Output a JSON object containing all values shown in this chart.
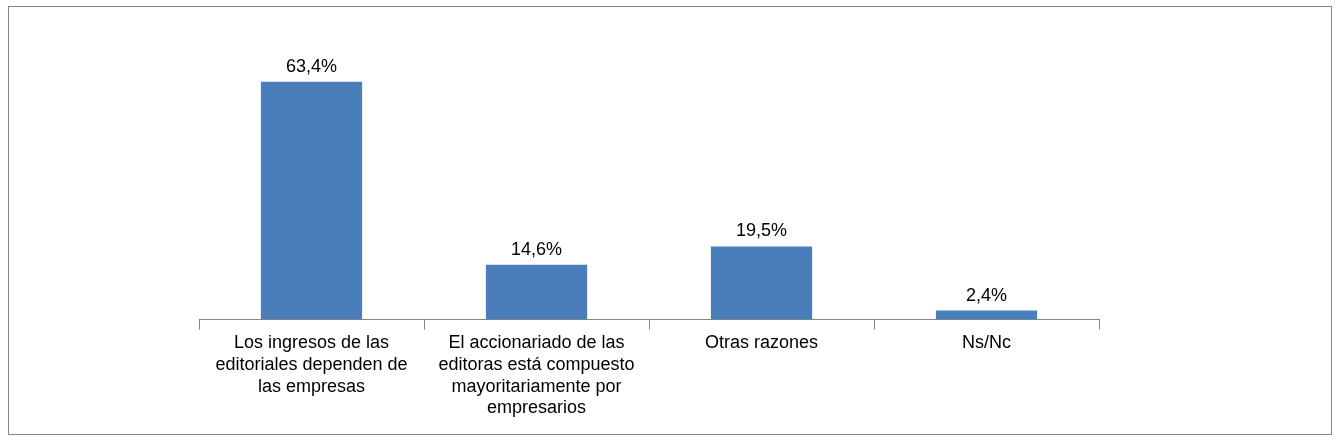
{
  "chart_data": {
    "type": "bar",
    "categories": [
      "Los ingresos de las editoriales dependen de las empresas",
      "El accionariado de las editoras está compuesto mayoritariamente por empresarios",
      "Otras razones",
      "Ns/Nc"
    ],
    "values": [
      63.4,
      14.6,
      19.5,
      2.4
    ],
    "value_labels": [
      "63,4%",
      "14,6%",
      "19,5%",
      "2,4%"
    ],
    "color": "#4a7ebb"
  }
}
